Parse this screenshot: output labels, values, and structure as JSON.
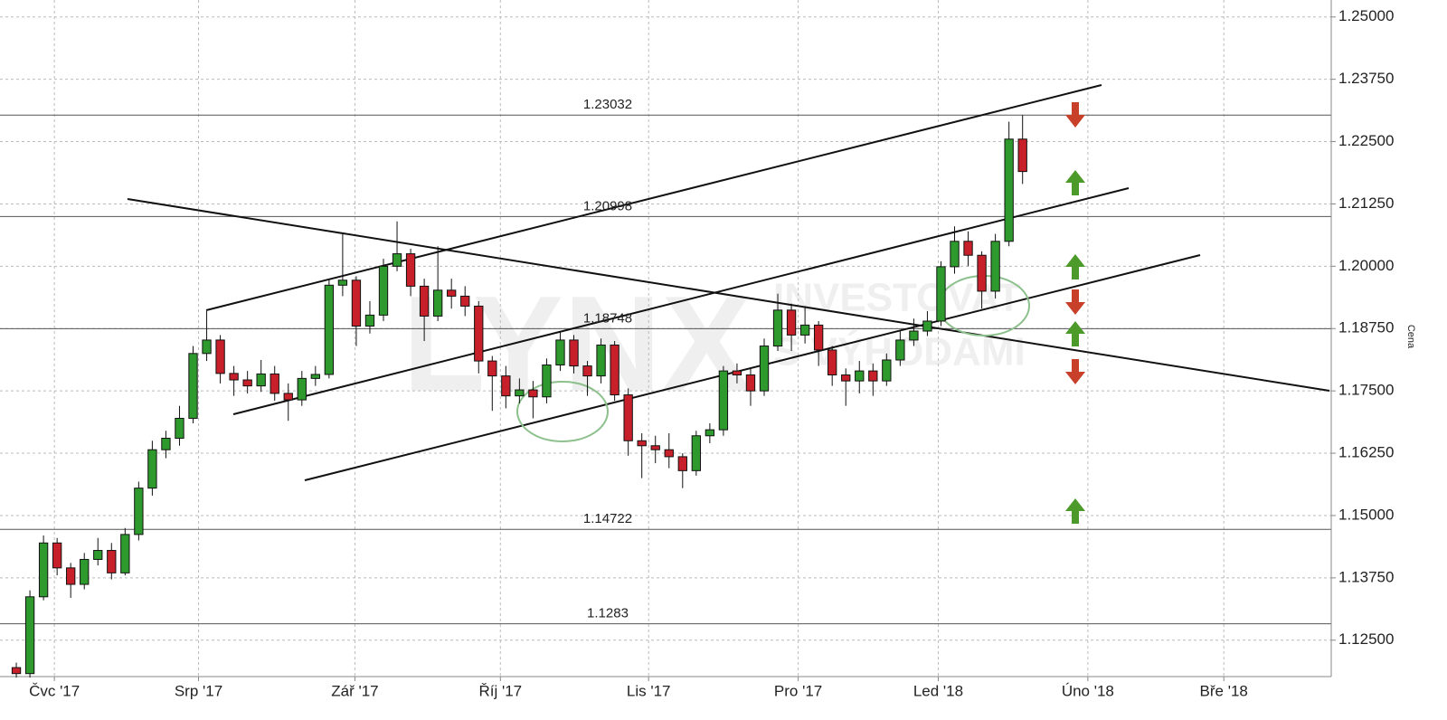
{
  "chart_data": {
    "type": "candlestick",
    "axis_label": "Cena",
    "watermark": [
      "LYNX",
      "INVESTOVAT",
      "S VÝHODAMI"
    ],
    "up_color": "#2e9a2e",
    "down_color": "#c8202a",
    "grid": true,
    "xlim": [
      -1.2,
      96.7
    ],
    "xticks": [
      {
        "value": 2.8,
        "label": "Čvc '17"
      },
      {
        "value": 13.4,
        "label": "Srp '17"
      },
      {
        "value": 24.9,
        "label": "Zář '17"
      },
      {
        "value": 35.6,
        "label": "Říj '17"
      },
      {
        "value": 46.5,
        "label": "Lis '17"
      },
      {
        "value": 57.5,
        "label": "Pro '17"
      },
      {
        "value": 67.8,
        "label": "Led '18"
      },
      {
        "value": 78.8,
        "label": "Úno '18"
      },
      {
        "value": 88.8,
        "label": "Bře '18"
      }
    ],
    "ylim": [
      1.1177,
      1.2534
    ],
    "yticks": [
      {
        "value": 1.125,
        "label": "1.12500"
      },
      {
        "value": 1.1375,
        "label": "1.13750"
      },
      {
        "value": 1.15,
        "label": "1.15000"
      },
      {
        "value": 1.1625,
        "label": "1.16250"
      },
      {
        "value": 1.175,
        "label": "1.17500"
      },
      {
        "value": 1.1875,
        "label": "1.18750"
      },
      {
        "value": 1.2,
        "label": "1.20000"
      },
      {
        "value": 1.2125,
        "label": "1.21250"
      },
      {
        "value": 1.225,
        "label": "1.22500"
      },
      {
        "value": 1.2375,
        "label": "1.23750"
      },
      {
        "value": 1.25,
        "label": "1.25000"
      }
    ],
    "levels": [
      1.23032,
      1.20998,
      1.18748,
      1.14722,
      1.1283
    ],
    "open": [
      1.1195,
      1.1183,
      1.1337,
      1.1445,
      1.1395,
      1.1362,
      1.1412,
      1.143,
      1.1385,
      1.1462,
      1.1555,
      1.1632,
      1.1655,
      1.1695,
      1.1825,
      1.1852,
      1.1785,
      1.1772,
      1.176,
      1.1784,
      1.1745,
      1.1732,
      1.1775,
      1.1783,
      1.1962,
      1.1972,
      1.188,
      1.1902,
      1.2,
      1.2025,
      1.196,
      1.19,
      1.1952,
      1.194,
      1.192,
      1.181,
      1.178,
      1.174,
      1.1752,
      1.1738,
      1.1802,
      1.1852,
      1.18,
      1.178,
      1.1842,
      1.1742,
      1.165,
      1.164,
      1.1632,
      1.1618,
      1.159,
      1.166,
      1.1672,
      1.179,
      1.1782,
      1.175,
      1.184,
      1.1912,
      1.1862,
      1.1882,
      1.1832,
      1.1782,
      1.177,
      1.179,
      1.177,
      1.1812,
      1.1852,
      1.187,
      1.189,
      1.1999,
      1.205,
      1.2022,
      1.195,
      1.205,
      1.2255
    ],
    "high": [
      1.1205,
      1.135,
      1.146,
      1.1455,
      1.1405,
      1.1425,
      1.1455,
      1.1445,
      1.1475,
      1.1568,
      1.165,
      1.167,
      1.172,
      1.184,
      1.191,
      1.1862,
      1.18,
      1.179,
      1.1812,
      1.18,
      1.1765,
      1.179,
      1.18,
      1.1975,
      1.2065,
      1.198,
      1.193,
      1.2015,
      1.209,
      1.2035,
      1.1975,
      1.204,
      1.1975,
      1.196,
      1.193,
      1.182,
      1.18,
      1.1775,
      1.177,
      1.1815,
      1.187,
      1.1862,
      1.181,
      1.1855,
      1.185,
      1.1755,
      1.1665,
      1.166,
      1.1665,
      1.1625,
      1.167,
      1.1685,
      1.18,
      1.1805,
      1.1795,
      1.1855,
      1.1945,
      1.1925,
      1.192,
      1.189,
      1.184,
      1.1795,
      1.181,
      1.1805,
      1.1825,
      1.187,
      1.1895,
      1.191,
      1.201,
      1.208,
      1.207,
      1.203,
      1.2065,
      1.229,
      1.2303
    ],
    "low": [
      1.1175,
      1.1175,
      1.133,
      1.138,
      1.1335,
      1.1352,
      1.14,
      1.1372,
      1.138,
      1.145,
      1.154,
      1.1615,
      1.164,
      1.1685,
      1.181,
      1.1765,
      1.174,
      1.1745,
      1.1748,
      1.173,
      1.169,
      1.172,
      1.176,
      1.1775,
      1.194,
      1.184,
      1.1865,
      1.189,
      1.199,
      1.194,
      1.185,
      1.189,
      1.1915,
      1.19,
      1.1785,
      1.171,
      1.1715,
      1.1725,
      1.1695,
      1.1725,
      1.179,
      1.1785,
      1.174,
      1.1765,
      1.173,
      1.162,
      1.1575,
      1.1605,
      1.1595,
      1.1555,
      1.158,
      1.1645,
      1.166,
      1.1765,
      1.172,
      1.174,
      1.183,
      1.183,
      1.1845,
      1.18,
      1.176,
      1.172,
      1.1745,
      1.174,
      1.176,
      1.18,
      1.184,
      1.186,
      1.188,
      1.1985,
      1.2,
      1.1915,
      1.1935,
      1.204,
      1.2165
    ],
    "close": [
      1.1183,
      1.1337,
      1.1445,
      1.1395,
      1.1362,
      1.1412,
      1.143,
      1.1385,
      1.1462,
      1.1555,
      1.1632,
      1.1655,
      1.1695,
      1.1825,
      1.1852,
      1.1785,
      1.1772,
      1.176,
      1.1784,
      1.1745,
      1.1732,
      1.1775,
      1.1783,
      1.1962,
      1.1972,
      1.188,
      1.1902,
      1.2,
      1.2025,
      1.196,
      1.19,
      1.1952,
      1.194,
      1.192,
      1.181,
      1.178,
      1.174,
      1.1752,
      1.1738,
      1.1802,
      1.1852,
      1.18,
      1.178,
      1.1842,
      1.1742,
      1.165,
      1.164,
      1.1632,
      1.1618,
      1.159,
      1.166,
      1.1672,
      1.179,
      1.1782,
      1.175,
      1.184,
      1.1912,
      1.1862,
      1.1882,
      1.1832,
      1.1782,
      1.177,
      1.179,
      1.177,
      1.1812,
      1.1852,
      1.187,
      1.189,
      1.1999,
      1.205,
      1.2022,
      1.195,
      1.205,
      1.2255,
      1.219
    ]
  }
}
